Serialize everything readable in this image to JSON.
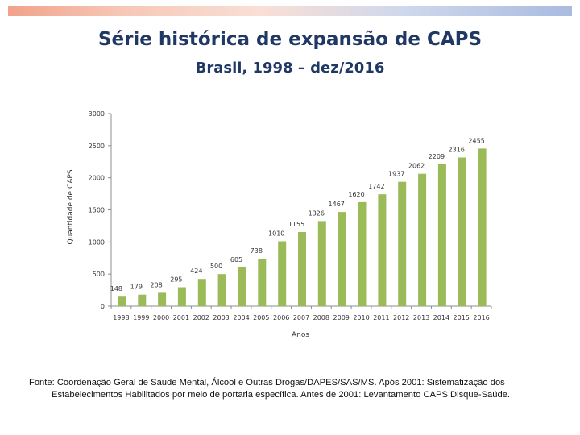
{
  "title": "Série histórica de expansão de CAPS",
  "subtitle": "Brasil, 1998 – dez/2016",
  "source": {
    "line1": "Fonte: Coordenação Geral de Saúde Mental, Álcool e Outras Drogas/DAPES/SAS/MS. Após 2001: Sistematização dos",
    "line2": "Estabelecimentos Habilitados por meio de portaria específica. Antes de 2001: Levantamento CAPS Disque-Saúde."
  },
  "colors": {
    "bar": "#9bbb59",
    "title": "#1f3864",
    "axis": "#8c8c8c"
  },
  "chart_data": {
    "type": "bar",
    "title": "Série histórica de expansão de CAPS",
    "xlabel": "Anos",
    "ylabel": "Quantidade de CAPS",
    "ylim": [
      0,
      3000
    ],
    "yticks": [
      0,
      500,
      1000,
      1500,
      2000,
      2500,
      3000
    ],
    "grid": false,
    "categories": [
      "1998",
      "1999",
      "2000",
      "2001",
      "2002",
      "2003",
      "2004",
      "2005",
      "2006",
      "2007",
      "2008",
      "2009",
      "2010",
      "2011",
      "2012",
      "2013",
      "2014",
      "2015",
      "2016"
    ],
    "values": [
      148,
      179,
      208,
      295,
      424,
      500,
      605,
      738,
      1010,
      1155,
      1326,
      1467,
      1620,
      1742,
      1937,
      2062,
      2209,
      2316,
      2455
    ]
  }
}
